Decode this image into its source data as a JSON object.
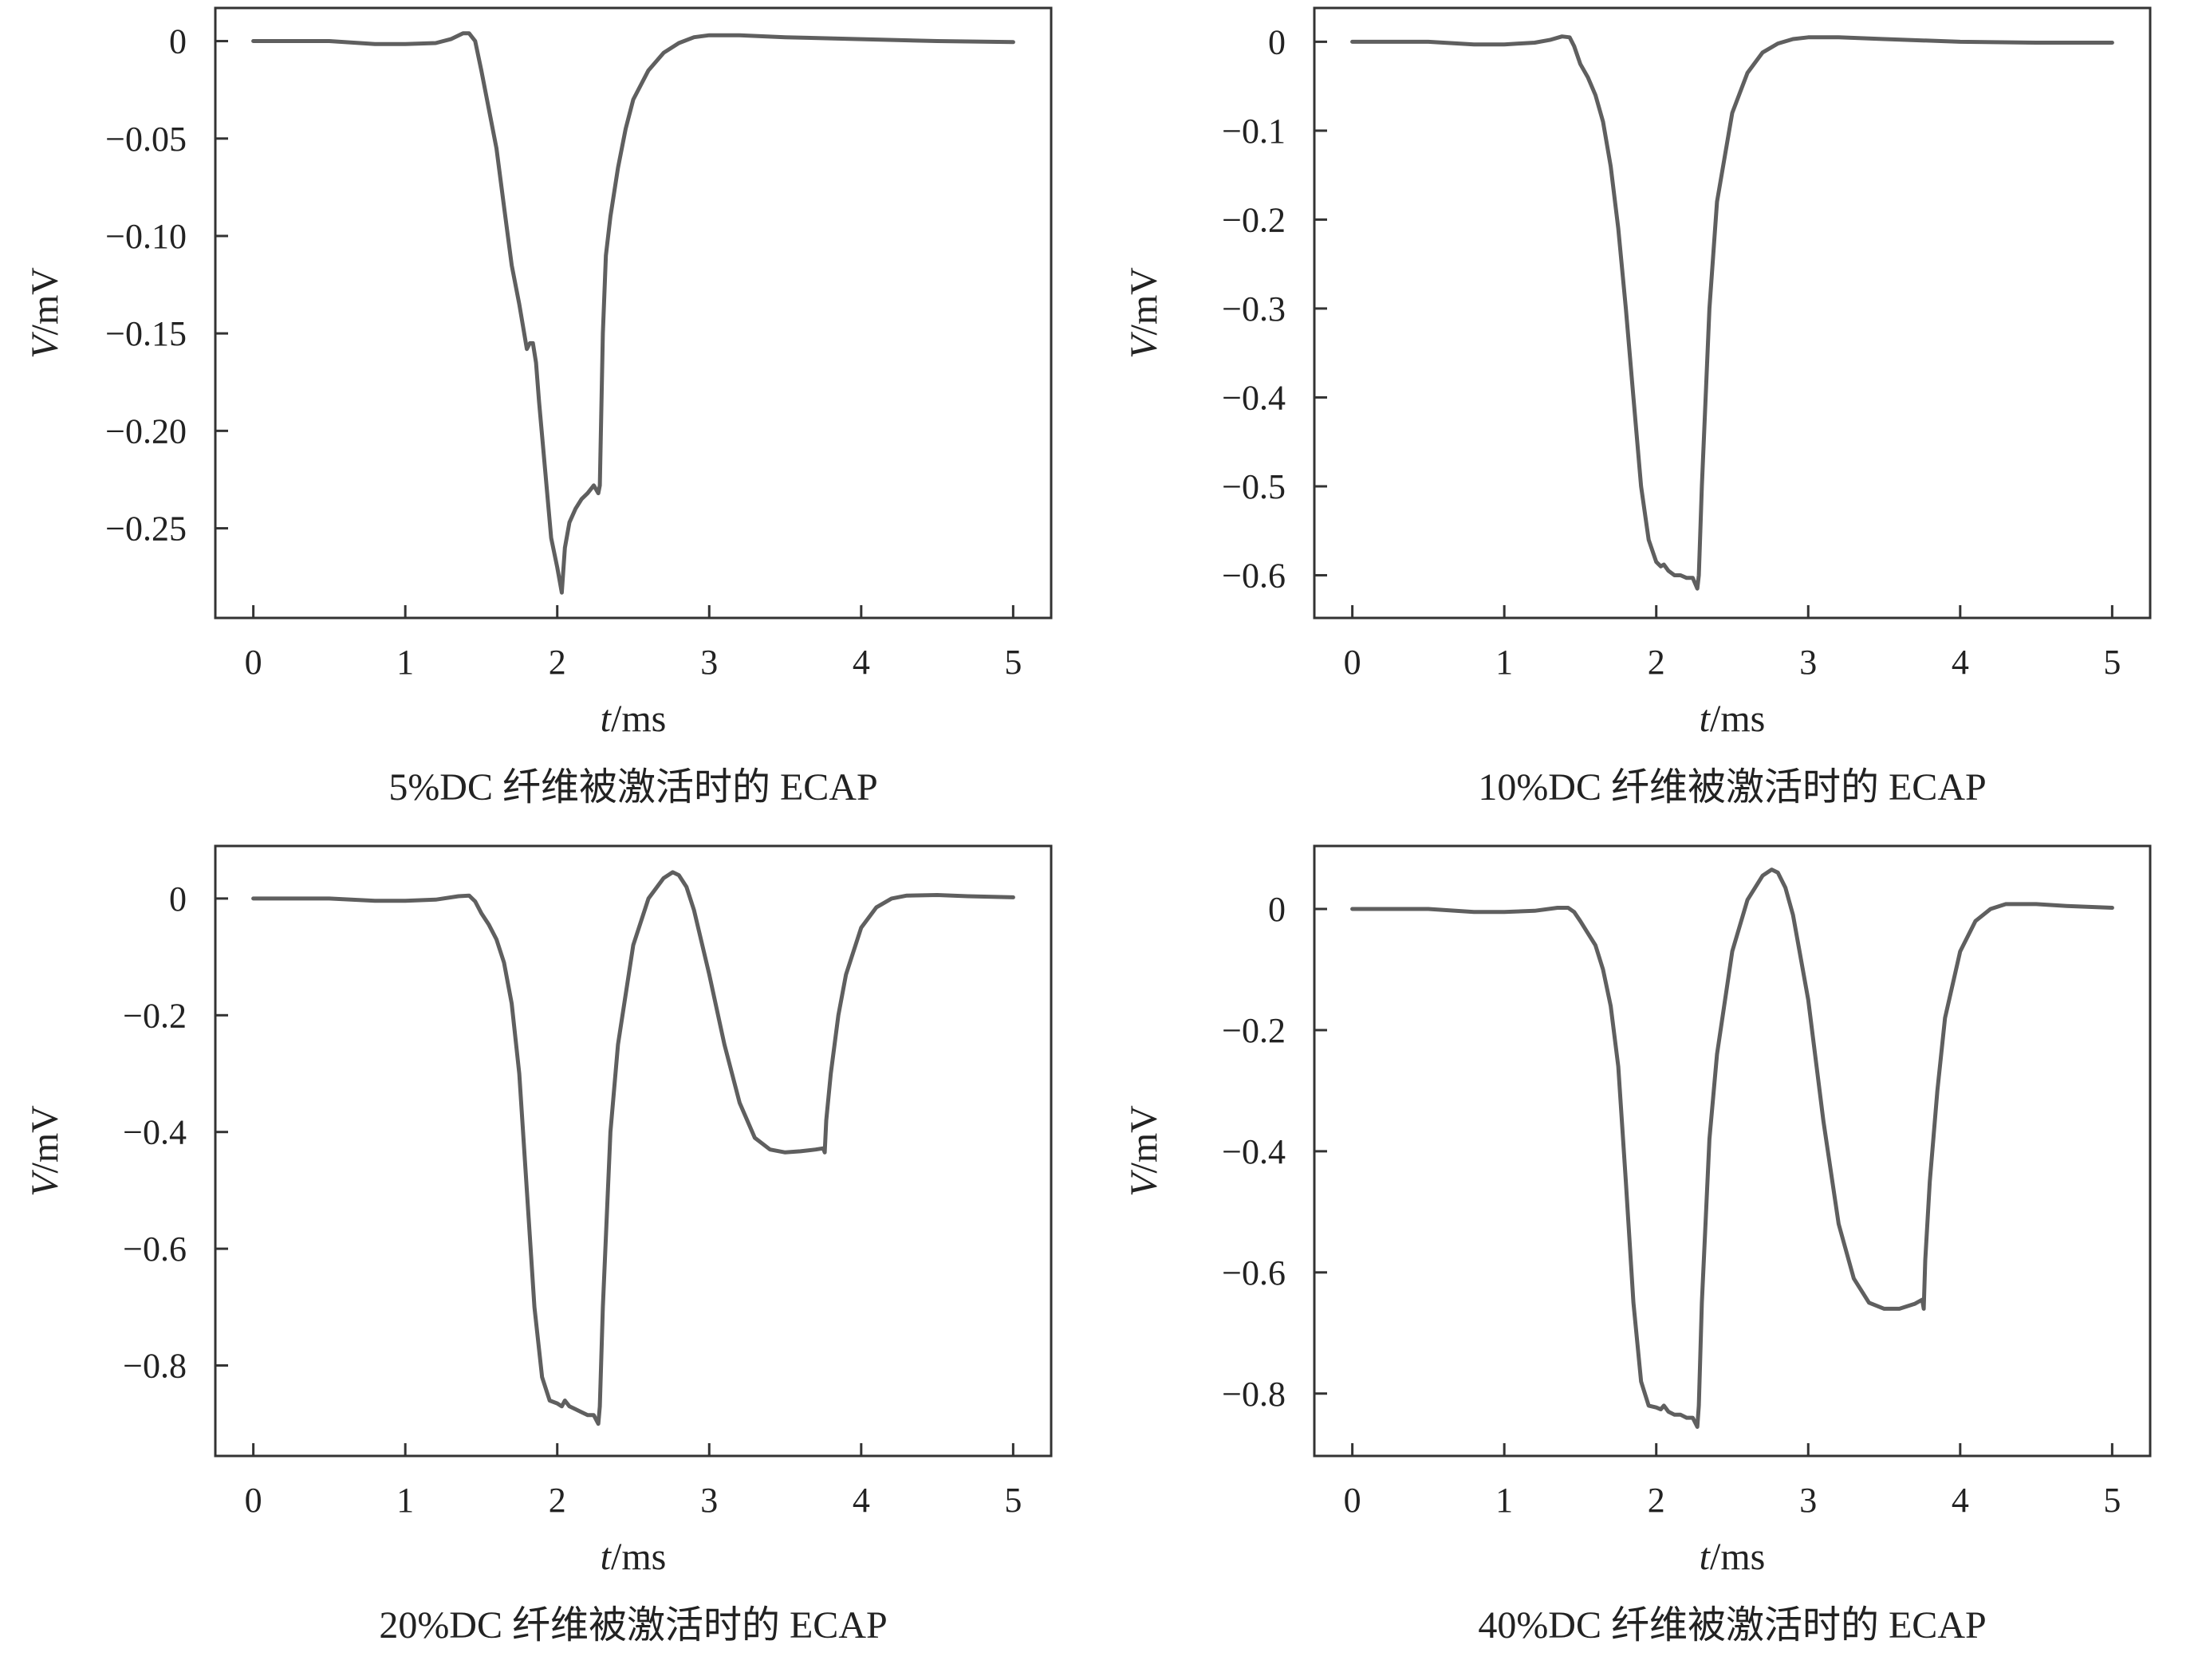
{
  "chart_data": [
    {
      "type": "line",
      "caption": "5%DC 纤维被激活时的 ECAP",
      "xlabel_var": "t",
      "xlabel_unit": "/ms",
      "ylabel_var": "V",
      "ylabel_unit": "/mV",
      "xlim": [
        -0.25,
        5.25
      ],
      "ylim": [
        -0.296,
        0.017
      ],
      "xticks": [
        0,
        1,
        2,
        3,
        4,
        5
      ],
      "xtick_labels": [
        "0",
        "1",
        "2",
        "3",
        "4",
        "5"
      ],
      "yticks": [
        0,
        -0.05,
        -0.1,
        -0.15,
        -0.2,
        -0.25
      ],
      "ytick_labels": [
        "0",
        "−0.05",
        "−0.10",
        "−0.15",
        "−0.20",
        "−0.25"
      ],
      "color": "#5f5f5f",
      "series": [
        {
          "x": [
            0,
            0.5,
            0.8,
            1.0,
            1.2,
            1.3,
            1.38,
            1.42,
            1.46,
            1.5,
            1.55,
            1.6,
            1.65,
            1.7,
            1.75,
            1.8,
            1.82,
            1.84,
            1.86,
            1.88,
            1.92,
            1.96,
            2.0,
            2.03,
            2.05,
            2.08,
            2.12,
            2.16,
            2.2,
            2.24,
            2.27,
            2.28,
            2.3,
            2.32,
            2.35,
            2.4,
            2.45,
            2.5,
            2.6,
            2.7,
            2.8,
            2.9,
            3.0,
            3.2,
            3.5,
            4.0,
            4.5,
            5.0
          ],
          "y": [
            0,
            0,
            -0.0015,
            -0.0015,
            -0.001,
            0.001,
            0.004,
            0.004,
            0.0,
            -0.015,
            -0.035,
            -0.055,
            -0.085,
            -0.115,
            -0.135,
            -0.158,
            -0.155,
            -0.155,
            -0.165,
            -0.185,
            -0.22,
            -0.255,
            -0.27,
            -0.283,
            -0.26,
            -0.247,
            -0.24,
            -0.235,
            -0.232,
            -0.228,
            -0.232,
            -0.228,
            -0.15,
            -0.11,
            -0.09,
            -0.065,
            -0.045,
            -0.03,
            -0.015,
            -0.006,
            -0.001,
            0.002,
            0.003,
            0.003,
            0.002,
            0.001,
            0.0,
            -0.0005
          ]
        }
      ]
    },
    {
      "type": "line",
      "caption": "10%DC 纤维被激活时的 ECAP",
      "xlabel_var": "t",
      "xlabel_unit": "/ms",
      "ylabel_var": "V",
      "ylabel_unit": "/mV",
      "xlim": [
        -0.25,
        5.25
      ],
      "ylim": [
        -0.648,
        0.038
      ],
      "xticks": [
        0,
        1,
        2,
        3,
        4,
        5
      ],
      "xtick_labels": [
        "0",
        "1",
        "2",
        "3",
        "4",
        "5"
      ],
      "yticks": [
        0,
        -0.1,
        -0.2,
        -0.3,
        -0.4,
        -0.5,
        -0.6
      ],
      "ytick_labels": [
        "0",
        "−0.1",
        "−0.2",
        "−0.3",
        "−0.4",
        "−0.5",
        "−0.6"
      ],
      "color": "#5f5f5f",
      "series": [
        {
          "x": [
            0,
            0.5,
            0.8,
            1.0,
            1.2,
            1.3,
            1.38,
            1.43,
            1.46,
            1.5,
            1.55,
            1.6,
            1.65,
            1.7,
            1.75,
            1.8,
            1.85,
            1.9,
            1.95,
            2.0,
            2.03,
            2.05,
            2.08,
            2.12,
            2.16,
            2.2,
            2.24,
            2.27,
            2.28,
            2.3,
            2.35,
            2.4,
            2.5,
            2.6,
            2.7,
            2.8,
            2.9,
            3.0,
            3.2,
            3.5,
            4.0,
            4.5,
            5.0
          ],
          "y": [
            0,
            0,
            -0.003,
            -0.003,
            -0.001,
            0.002,
            0.006,
            0.005,
            -0.005,
            -0.025,
            -0.04,
            -0.06,
            -0.09,
            -0.14,
            -0.21,
            -0.3,
            -0.4,
            -0.5,
            -0.56,
            -0.585,
            -0.59,
            -0.588,
            -0.595,
            -0.6,
            -0.6,
            -0.603,
            -0.603,
            -0.615,
            -0.6,
            -0.5,
            -0.3,
            -0.18,
            -0.08,
            -0.035,
            -0.012,
            -0.002,
            0.003,
            0.005,
            0.005,
            0.003,
            0.0,
            -0.001,
            -0.001
          ]
        }
      ]
    },
    {
      "type": "line",
      "caption": "20%DC 纤维被激活时的 ECAP",
      "xlabel_var": "t",
      "xlabel_unit": "/ms",
      "ylabel_var": "V",
      "ylabel_unit": "/mV",
      "xlim": [
        -0.25,
        5.25
      ],
      "ylim": [
        -0.955,
        0.09
      ],
      "xticks": [
        0,
        1,
        2,
        3,
        4,
        5
      ],
      "xtick_labels": [
        "0",
        "1",
        "2",
        "3",
        "4",
        "5"
      ],
      "yticks": [
        0,
        -0.2,
        -0.4,
        -0.6,
        -0.8
      ],
      "ytick_labels": [
        "0",
        "−0.2",
        "−0.4",
        "−0.6",
        "−0.8"
      ],
      "color": "#5f5f5f",
      "series": [
        {
          "x": [
            0,
            0.5,
            0.8,
            1.0,
            1.2,
            1.35,
            1.42,
            1.46,
            1.5,
            1.55,
            1.6,
            1.65,
            1.7,
            1.75,
            1.8,
            1.85,
            1.9,
            1.95,
            2.0,
            2.03,
            2.05,
            2.08,
            2.12,
            2.16,
            2.2,
            2.24,
            2.27,
            2.28,
            2.3,
            2.35,
            2.4,
            2.5,
            2.6,
            2.7,
            2.76,
            2.8,
            2.85,
            2.9,
            3.0,
            3.1,
            3.2,
            3.3,
            3.4,
            3.5,
            3.6,
            3.7,
            3.75,
            3.76,
            3.77,
            3.8,
            3.85,
            3.9,
            4.0,
            4.1,
            4.2,
            4.3,
            4.5,
            4.7,
            5.0
          ],
          "y": [
            0,
            0,
            -0.004,
            -0.004,
            -0.002,
            0.004,
            0.005,
            -0.005,
            -0.025,
            -0.045,
            -0.07,
            -0.11,
            -0.18,
            -0.3,
            -0.5,
            -0.7,
            -0.82,
            -0.86,
            -0.865,
            -0.87,
            -0.86,
            -0.87,
            -0.875,
            -0.88,
            -0.885,
            -0.885,
            -0.9,
            -0.87,
            -0.7,
            -0.4,
            -0.25,
            -0.08,
            0.0,
            0.035,
            0.045,
            0.04,
            0.02,
            -0.02,
            -0.13,
            -0.25,
            -0.35,
            -0.41,
            -0.43,
            -0.435,
            -0.433,
            -0.43,
            -0.428,
            -0.435,
            -0.38,
            -0.3,
            -0.2,
            -0.13,
            -0.05,
            -0.015,
            0.0,
            0.005,
            0.006,
            0.004,
            0.002
          ]
        }
      ]
    },
    {
      "type": "line",
      "caption": "40%DC 纤维被激活时的 ECAP",
      "xlabel_var": "t",
      "xlabel_unit": "/ms",
      "ylabel_var": "V",
      "ylabel_unit": "/mV",
      "xlim": [
        -0.25,
        5.25
      ],
      "ylim": [
        -0.903,
        0.104
      ],
      "xticks": [
        0,
        1,
        2,
        3,
        4,
        5
      ],
      "xtick_labels": [
        "0",
        "1",
        "2",
        "3",
        "4",
        "5"
      ],
      "yticks": [
        0,
        -0.2,
        -0.4,
        -0.6,
        -0.8
      ],
      "ytick_labels": [
        "0",
        "−0.2",
        "−0.4",
        "−0.6",
        "−0.8"
      ],
      "color": "#5f5f5f",
      "series": [
        {
          "x": [
            0,
            0.5,
            0.8,
            1.0,
            1.2,
            1.35,
            1.42,
            1.46,
            1.5,
            1.55,
            1.6,
            1.65,
            1.7,
            1.75,
            1.8,
            1.85,
            1.9,
            1.95,
            2.0,
            2.03,
            2.05,
            2.08,
            2.12,
            2.16,
            2.2,
            2.24,
            2.27,
            2.28,
            2.3,
            2.35,
            2.4,
            2.5,
            2.6,
            2.7,
            2.76,
            2.8,
            2.85,
            2.9,
            3.0,
            3.1,
            3.2,
            3.3,
            3.4,
            3.5,
            3.6,
            3.7,
            3.75,
            3.76,
            3.77,
            3.8,
            3.85,
            3.9,
            4.0,
            4.1,
            4.2,
            4.3,
            4.5,
            4.7,
            5.0
          ],
          "y": [
            0,
            0,
            -0.005,
            -0.005,
            -0.003,
            0.002,
            0.002,
            -0.005,
            -0.02,
            -0.04,
            -0.06,
            -0.1,
            -0.16,
            -0.26,
            -0.45,
            -0.65,
            -0.78,
            -0.82,
            -0.823,
            -0.826,
            -0.82,
            -0.83,
            -0.835,
            -0.835,
            -0.84,
            -0.84,
            -0.855,
            -0.82,
            -0.65,
            -0.38,
            -0.24,
            -0.07,
            0.015,
            0.055,
            0.065,
            0.06,
            0.035,
            -0.01,
            -0.15,
            -0.35,
            -0.52,
            -0.61,
            -0.65,
            -0.66,
            -0.66,
            -0.652,
            -0.645,
            -0.66,
            -0.58,
            -0.45,
            -0.3,
            -0.18,
            -0.07,
            -0.02,
            0.0,
            0.008,
            0.008,
            0.005,
            0.002
          ]
        }
      ]
    }
  ]
}
